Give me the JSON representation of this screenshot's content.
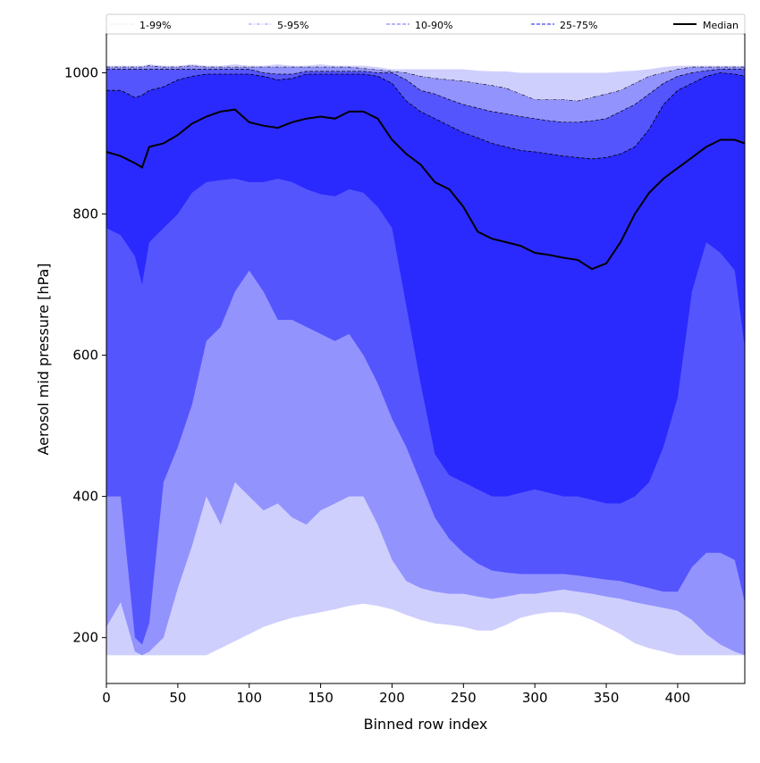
{
  "chart_data": {
    "type": "area",
    "xlabel": "Binned row index",
    "ylabel": "Aerosol mid pressure [hPa]",
    "xlim": [
      0,
      447
    ],
    "ylim": [
      135,
      1055
    ],
    "x_ticks": [
      0,
      50,
      100,
      150,
      200,
      250,
      300,
      350,
      400
    ],
    "y_ticks": [
      200,
      400,
      600,
      800,
      1000
    ],
    "legend_position": "top (full width, single row)",
    "legend": [
      {
        "label": "1-99%",
        "style": "thin dotted",
        "color": "#d0d0f8"
      },
      {
        "label": "5-95%",
        "style": "thin dash-dot",
        "color": "#9090ff"
      },
      {
        "label": "10-90%",
        "style": "dashed",
        "color": "#8888ff"
      },
      {
        "label": "25-75%",
        "style": "dashed",
        "color": "#4040ff"
      },
      {
        "label": "Median",
        "style": "solid thick",
        "color": "#000000"
      }
    ],
    "band_colors": {
      "1-99%": "#cfcffd",
      "5-95%": "#9393fe",
      "10-90%": "#5555fe",
      "25-75%": "#2a2afe"
    },
    "x": [
      0,
      10,
      20,
      25,
      30,
      40,
      50,
      60,
      70,
      80,
      90,
      100,
      110,
      120,
      130,
      140,
      150,
      160,
      170,
      180,
      190,
      200,
      210,
      220,
      230,
      240,
      250,
      260,
      270,
      280,
      290,
      300,
      310,
      320,
      330,
      340,
      350,
      360,
      370,
      380,
      390,
      400,
      410,
      420,
      430,
      440,
      447
    ],
    "p1": [
      175,
      175,
      175,
      175,
      175,
      175,
      175,
      175,
      175,
      185,
      195,
      205,
      215,
      222,
      228,
      232,
      236,
      240,
      245,
      248,
      245,
      240,
      232,
      225,
      220,
      218,
      215,
      210,
      210,
      218,
      228,
      233,
      236,
      236,
      233,
      225,
      215,
      205,
      192,
      185,
      180,
      175,
      175,
      175,
      175,
      175,
      175
    ],
    "p99": [
      1010,
      1010,
      1010,
      1010,
      1012,
      1010,
      1010,
      1012,
      1010,
      1010,
      1012,
      1010,
      1010,
      1012,
      1010,
      1010,
      1012,
      1010,
      1010,
      1010,
      1008,
      1005,
      1005,
      1005,
      1005,
      1005,
      1005,
      1003,
      1002,
      1002,
      1000,
      1000,
      1000,
      1000,
      1000,
      1000,
      1000,
      1002,
      1003,
      1005,
      1008,
      1010,
      1010,
      1010,
      1010,
      1010,
      1010
    ],
    "p5": [
      215,
      250,
      180,
      175,
      180,
      200,
      270,
      330,
      400,
      360,
      420,
      400,
      380,
      390,
      370,
      360,
      380,
      390,
      400,
      400,
      360,
      310,
      280,
      270,
      265,
      262,
      262,
      258,
      255,
      258,
      262,
      262,
      265,
      268,
      265,
      262,
      258,
      255,
      250,
      246,
      242,
      238,
      225,
      205,
      190,
      180,
      175
    ],
    "p95": [
      1008,
      1008,
      1008,
      1008,
      1010,
      1008,
      1008,
      1010,
      1008,
      1008,
      1008,
      1008,
      1008,
      1008,
      1008,
      1008,
      1008,
      1008,
      1008,
      1006,
      1004,
      1002,
      1000,
      995,
      992,
      990,
      988,
      985,
      982,
      978,
      970,
      962,
      962,
      962,
      960,
      965,
      970,
      975,
      985,
      995,
      1000,
      1005,
      1008,
      1008,
      1008,
      1008,
      1008
    ],
    "p10": [
      400,
      400,
      200,
      190,
      220,
      420,
      470,
      530,
      620,
      640,
      690,
      720,
      690,
      650,
      650,
      640,
      630,
      620,
      630,
      600,
      560,
      510,
      470,
      420,
      370,
      340,
      320,
      305,
      295,
      292,
      290,
      290,
      290,
      290,
      288,
      285,
      282,
      280,
      275,
      270,
      265,
      265,
      300,
      320,
      320,
      310,
      250
    ],
    "p90": [
      1005,
      1005,
      1005,
      1005,
      1005,
      1005,
      1005,
      1005,
      1005,
      1005,
      1005,
      1005,
      1000,
      998,
      998,
      1002,
      1002,
      1002,
      1002,
      1002,
      1000,
      1000,
      990,
      975,
      970,
      962,
      955,
      950,
      945,
      942,
      938,
      935,
      932,
      930,
      930,
      932,
      935,
      945,
      955,
      970,
      985,
      995,
      1000,
      1003,
      1005,
      1005,
      1005
    ],
    "p25": [
      780,
      770,
      740,
      700,
      760,
      780,
      800,
      830,
      845,
      848,
      850,
      845,
      845,
      850,
      845,
      835,
      828,
      825,
      835,
      830,
      810,
      780,
      670,
      560,
      460,
      430,
      420,
      410,
      400,
      400,
      405,
      410,
      405,
      400,
      400,
      395,
      390,
      390,
      400,
      420,
      470,
      540,
      690,
      760,
      745,
      720,
      610
    ],
    "p75": [
      975,
      975,
      965,
      968,
      975,
      980,
      990,
      995,
      998,
      998,
      998,
      998,
      995,
      990,
      992,
      998,
      998,
      998,
      998,
      998,
      995,
      985,
      960,
      945,
      935,
      925,
      915,
      908,
      900,
      895,
      890,
      888,
      885,
      882,
      880,
      878,
      880,
      885,
      895,
      920,
      955,
      975,
      985,
      995,
      1000,
      998,
      995
    ],
    "median": [
      888,
      882,
      872,
      866,
      895,
      900,
      912,
      928,
      938,
      945,
      948,
      930,
      925,
      922,
      930,
      935,
      938,
      935,
      945,
      945,
      935,
      905,
      885,
      870,
      845,
      835,
      810,
      775,
      765,
      760,
      755,
      745,
      742,
      738,
      735,
      722,
      730,
      760,
      800,
      830,
      850,
      865,
      880,
      895,
      905,
      905,
      900
    ]
  }
}
